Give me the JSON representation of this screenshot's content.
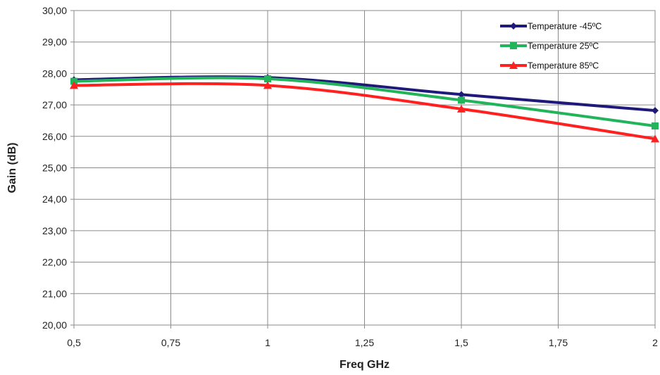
{
  "chart_data": {
    "type": "line",
    "title": "",
    "xlabel": "Freq GHz",
    "ylabel": "Gain (dB)",
    "xlim": [
      0.5,
      2
    ],
    "ylim": [
      20,
      30
    ],
    "x_ticks": [
      0.5,
      0.75,
      1,
      1.25,
      1.5,
      1.75,
      2
    ],
    "x_tick_labels": [
      "0,5",
      "0,75",
      "1",
      "1,25",
      "1,5",
      "1,75",
      "2"
    ],
    "y_ticks": [
      20,
      21,
      22,
      23,
      24,
      25,
      26,
      27,
      28,
      29,
      30
    ],
    "y_tick_labels": [
      "20,00",
      "21,00",
      "22,00",
      "23,00",
      "24,00",
      "25,00",
      "26,00",
      "27,00",
      "28,00",
      "29,00",
      "30,00"
    ],
    "grid": true,
    "legend_position": "top-right",
    "series": [
      {
        "name": "Temperature -45ºC",
        "color": "#1f1a7a",
        "marker": "diamond",
        "x": [
          0.5,
          1,
          1.5,
          2
        ],
        "y": [
          27.8,
          27.87,
          27.33,
          26.82
        ]
      },
      {
        "name": "Temperature 25ºC",
        "color": "#22b45a",
        "marker": "square",
        "x": [
          0.5,
          1,
          1.5,
          2
        ],
        "y": [
          27.75,
          27.83,
          27.15,
          26.33
        ]
      },
      {
        "name": "Temperature 85ºC",
        "color": "#ff2020",
        "marker": "triangle",
        "x": [
          0.5,
          1,
          1.5,
          2
        ],
        "y": [
          27.62,
          27.62,
          26.87,
          25.92
        ]
      }
    ]
  }
}
